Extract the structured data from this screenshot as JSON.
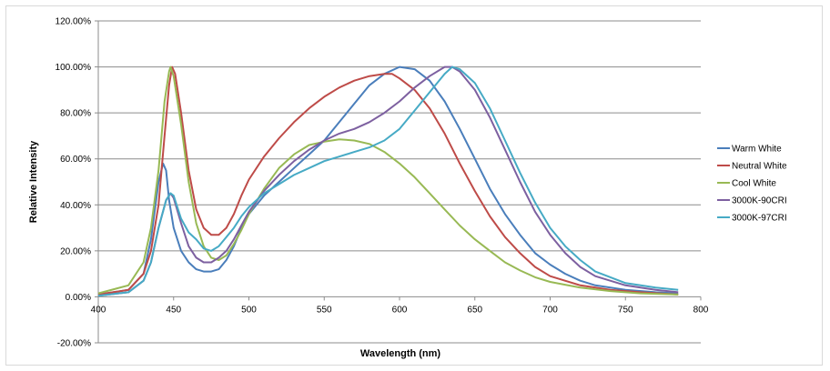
{
  "chart_data": {
    "type": "line",
    "title": "",
    "xlabel": "Wavelength (nm)",
    "ylabel": "Relative Intensity",
    "xlim": [
      400,
      800
    ],
    "ylim": [
      -0.2,
      1.2
    ],
    "x_ticks": [
      400,
      450,
      500,
      550,
      600,
      650,
      700,
      750,
      800
    ],
    "y_ticks": [
      -0.2,
      0,
      0.2,
      0.4,
      0.6,
      0.8,
      1.0,
      1.2
    ],
    "x_tick_labels": [
      "400",
      "450",
      "500",
      "550",
      "600",
      "650",
      "700",
      "750",
      "800"
    ],
    "y_tick_labels": [
      "-20.00%",
      "0.00%",
      "20.00%",
      "40.00%",
      "60.00%",
      "80.00%",
      "100.00%",
      "120.00%"
    ],
    "grid": "horizontal",
    "legend_position": "right",
    "series": [
      {
        "name": "Warm White",
        "color": "#4a7ebb",
        "points": [
          [
            400,
            0.01
          ],
          [
            420,
            0.03
          ],
          [
            430,
            0.1
          ],
          [
            435,
            0.25
          ],
          [
            440,
            0.5
          ],
          [
            443,
            0.58
          ],
          [
            445,
            0.55
          ],
          [
            447,
            0.42
          ],
          [
            450,
            0.3
          ],
          [
            455,
            0.2
          ],
          [
            460,
            0.15
          ],
          [
            465,
            0.12
          ],
          [
            470,
            0.11
          ],
          [
            475,
            0.11
          ],
          [
            480,
            0.12
          ],
          [
            485,
            0.16
          ],
          [
            490,
            0.22
          ],
          [
            495,
            0.3
          ],
          [
            500,
            0.36
          ],
          [
            510,
            0.44
          ],
          [
            520,
            0.5
          ],
          [
            530,
            0.56
          ],
          [
            540,
            0.62
          ],
          [
            550,
            0.68
          ],
          [
            560,
            0.76
          ],
          [
            570,
            0.84
          ],
          [
            580,
            0.92
          ],
          [
            590,
            0.97
          ],
          [
            600,
            1.0
          ],
          [
            610,
            0.99
          ],
          [
            620,
            0.94
          ],
          [
            630,
            0.85
          ],
          [
            640,
            0.73
          ],
          [
            650,
            0.6
          ],
          [
            660,
            0.47
          ],
          [
            670,
            0.36
          ],
          [
            680,
            0.27
          ],
          [
            690,
            0.19
          ],
          [
            700,
            0.14
          ],
          [
            710,
            0.1
          ],
          [
            720,
            0.07
          ],
          [
            730,
            0.05
          ],
          [
            750,
            0.03
          ],
          [
            770,
            0.02
          ],
          [
            785,
            0.015
          ]
        ]
      },
      {
        "name": "Neutral White",
        "color": "#be4b48",
        "points": [
          [
            400,
            0.01
          ],
          [
            420,
            0.03
          ],
          [
            430,
            0.1
          ],
          [
            435,
            0.2
          ],
          [
            440,
            0.4
          ],
          [
            444,
            0.7
          ],
          [
            447,
            0.92
          ],
          [
            449,
            1.0
          ],
          [
            451,
            0.97
          ],
          [
            455,
            0.8
          ],
          [
            460,
            0.55
          ],
          [
            465,
            0.38
          ],
          [
            470,
            0.3
          ],
          [
            475,
            0.27
          ],
          [
            480,
            0.27
          ],
          [
            485,
            0.3
          ],
          [
            490,
            0.36
          ],
          [
            495,
            0.44
          ],
          [
            500,
            0.51
          ],
          [
            510,
            0.61
          ],
          [
            520,
            0.69
          ],
          [
            530,
            0.76
          ],
          [
            540,
            0.82
          ],
          [
            550,
            0.87
          ],
          [
            560,
            0.91
          ],
          [
            570,
            0.94
          ],
          [
            580,
            0.96
          ],
          [
            590,
            0.97
          ],
          [
            595,
            0.97
          ],
          [
            600,
            0.95
          ],
          [
            610,
            0.9
          ],
          [
            620,
            0.82
          ],
          [
            630,
            0.71
          ],
          [
            640,
            0.58
          ],
          [
            650,
            0.46
          ],
          [
            660,
            0.35
          ],
          [
            670,
            0.26
          ],
          [
            680,
            0.19
          ],
          [
            690,
            0.13
          ],
          [
            700,
            0.09
          ],
          [
            720,
            0.05
          ],
          [
            740,
            0.03
          ],
          [
            760,
            0.02
          ],
          [
            785,
            0.01
          ]
        ]
      },
      {
        "name": "Cool White",
        "color": "#98b954",
        "points": [
          [
            400,
            0.015
          ],
          [
            420,
            0.05
          ],
          [
            430,
            0.15
          ],
          [
            435,
            0.3
          ],
          [
            440,
            0.55
          ],
          [
            444,
            0.85
          ],
          [
            447,
            0.98
          ],
          [
            448,
            1.0
          ],
          [
            450,
            0.96
          ],
          [
            455,
            0.75
          ],
          [
            460,
            0.5
          ],
          [
            465,
            0.32
          ],
          [
            470,
            0.22
          ],
          [
            475,
            0.17
          ],
          [
            480,
            0.16
          ],
          [
            485,
            0.18
          ],
          [
            490,
            0.23
          ],
          [
            495,
            0.29
          ],
          [
            500,
            0.36
          ],
          [
            510,
            0.47
          ],
          [
            520,
            0.56
          ],
          [
            530,
            0.62
          ],
          [
            540,
            0.66
          ],
          [
            550,
            0.675
          ],
          [
            560,
            0.685
          ],
          [
            570,
            0.68
          ],
          [
            580,
            0.665
          ],
          [
            590,
            0.63
          ],
          [
            600,
            0.58
          ],
          [
            610,
            0.52
          ],
          [
            620,
            0.45
          ],
          [
            630,
            0.38
          ],
          [
            640,
            0.31
          ],
          [
            650,
            0.25
          ],
          [
            660,
            0.2
          ],
          [
            670,
            0.15
          ],
          [
            680,
            0.115
          ],
          [
            690,
            0.085
          ],
          [
            700,
            0.065
          ],
          [
            720,
            0.04
          ],
          [
            740,
            0.025
          ],
          [
            760,
            0.015
          ],
          [
            785,
            0.01
          ]
        ]
      },
      {
        "name": "3000K-90CRI",
        "color": "#7d60a0",
        "points": [
          [
            400,
            0.005
          ],
          [
            420,
            0.02
          ],
          [
            430,
            0.07
          ],
          [
            435,
            0.15
          ],
          [
            440,
            0.3
          ],
          [
            445,
            0.42
          ],
          [
            448,
            0.45
          ],
          [
            450,
            0.43
          ],
          [
            455,
            0.32
          ],
          [
            460,
            0.22
          ],
          [
            465,
            0.17
          ],
          [
            470,
            0.15
          ],
          [
            475,
            0.15
          ],
          [
            480,
            0.17
          ],
          [
            485,
            0.2
          ],
          [
            490,
            0.25
          ],
          [
            495,
            0.31
          ],
          [
            500,
            0.37
          ],
          [
            510,
            0.46
          ],
          [
            520,
            0.53
          ],
          [
            530,
            0.59
          ],
          [
            540,
            0.64
          ],
          [
            550,
            0.68
          ],
          [
            560,
            0.71
          ],
          [
            570,
            0.73
          ],
          [
            580,
            0.76
          ],
          [
            590,
            0.8
          ],
          [
            600,
            0.85
          ],
          [
            610,
            0.91
          ],
          [
            620,
            0.96
          ],
          [
            630,
            1.0
          ],
          [
            635,
            1.0
          ],
          [
            640,
            0.98
          ],
          [
            650,
            0.9
          ],
          [
            660,
            0.78
          ],
          [
            670,
            0.64
          ],
          [
            680,
            0.5
          ],
          [
            690,
            0.37
          ],
          [
            700,
            0.27
          ],
          [
            710,
            0.19
          ],
          [
            720,
            0.13
          ],
          [
            730,
            0.09
          ],
          [
            750,
            0.05
          ],
          [
            770,
            0.03
          ],
          [
            785,
            0.02
          ]
        ]
      },
      {
        "name": "3000K-97CRI",
        "color": "#46aac5",
        "points": [
          [
            400,
            0.005
          ],
          [
            420,
            0.02
          ],
          [
            430,
            0.07
          ],
          [
            435,
            0.15
          ],
          [
            440,
            0.3
          ],
          [
            445,
            0.42
          ],
          [
            448,
            0.45
          ],
          [
            450,
            0.44
          ],
          [
            455,
            0.34
          ],
          [
            460,
            0.28
          ],
          [
            465,
            0.25
          ],
          [
            470,
            0.21
          ],
          [
            475,
            0.2
          ],
          [
            480,
            0.22
          ],
          [
            485,
            0.26
          ],
          [
            490,
            0.3
          ],
          [
            495,
            0.35
          ],
          [
            500,
            0.39
          ],
          [
            510,
            0.45
          ],
          [
            520,
            0.49
          ],
          [
            530,
            0.53
          ],
          [
            540,
            0.56
          ],
          [
            550,
            0.59
          ],
          [
            560,
            0.61
          ],
          [
            570,
            0.63
          ],
          [
            580,
            0.65
          ],
          [
            590,
            0.68
          ],
          [
            600,
            0.73
          ],
          [
            610,
            0.81
          ],
          [
            620,
            0.89
          ],
          [
            630,
            0.97
          ],
          [
            635,
            1.0
          ],
          [
            640,
            0.99
          ],
          [
            650,
            0.93
          ],
          [
            660,
            0.82
          ],
          [
            670,
            0.68
          ],
          [
            680,
            0.54
          ],
          [
            690,
            0.41
          ],
          [
            700,
            0.3
          ],
          [
            710,
            0.22
          ],
          [
            720,
            0.16
          ],
          [
            730,
            0.11
          ],
          [
            750,
            0.06
          ],
          [
            770,
            0.04
          ],
          [
            785,
            0.03
          ]
        ]
      }
    ]
  }
}
